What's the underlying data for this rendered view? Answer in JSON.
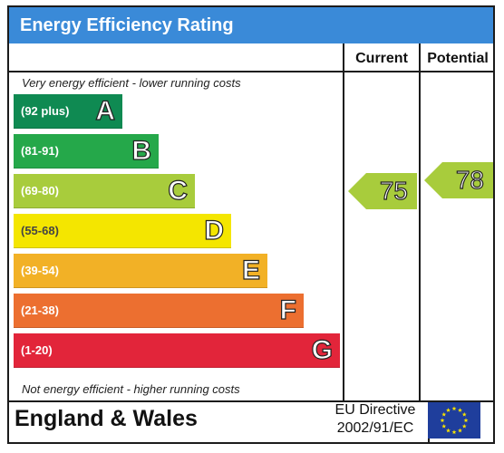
{
  "title": "Energy Efficiency Rating",
  "columns": {
    "current": "Current",
    "potential": "Potential"
  },
  "notes": {
    "top": "Very energy efficient - lower running costs",
    "bottom": "Not energy efficient - higher running costs"
  },
  "chart_data": {
    "type": "bar",
    "categories": [
      "A",
      "B",
      "C",
      "D",
      "E",
      "F",
      "G"
    ],
    "ranges": [
      "(92 plus)",
      "(81-91)",
      "(69-80)",
      "(55-68)",
      "(39-54)",
      "(21-38)",
      "(1-20)"
    ],
    "colors": [
      "#0f8a52",
      "#25a84a",
      "#a8cc3c",
      "#f4e600",
      "#f2b126",
      "#ec6f30",
      "#e2253a"
    ],
    "current": {
      "value": 75,
      "band": "C"
    },
    "potential": {
      "value": 78,
      "band": "C"
    }
  },
  "footer": {
    "region": "England & Wales",
    "directive_line1": "EU Directive",
    "directive_line2": "2002/91/EC"
  },
  "flag_color": "#1f3e9c",
  "star_color": "#f7e200"
}
